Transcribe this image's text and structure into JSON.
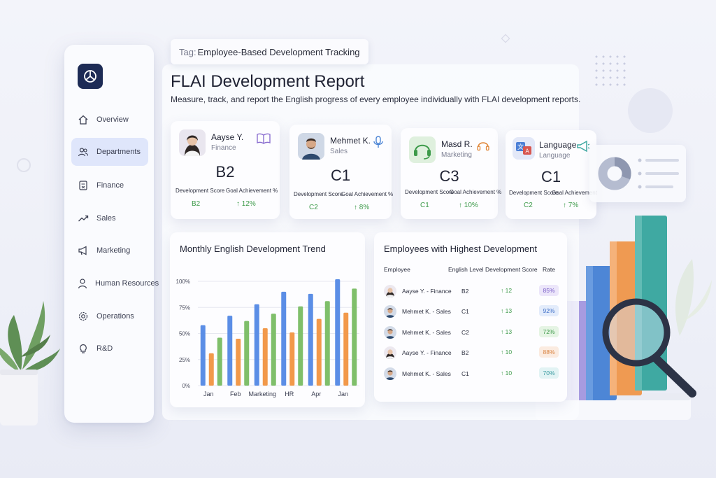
{
  "tag": {
    "prefix": "Tag:",
    "text": "Employee-Based Development Tracking"
  },
  "header": {
    "title": "FLAI Development Report",
    "subtitle": "Measure, track, and report the English progress of every employee individually with FLAI development reports."
  },
  "sidebar": {
    "items": [
      {
        "label": "Overview",
        "icon": "home-icon"
      },
      {
        "label": "Departments",
        "icon": "users-icon",
        "active": true
      },
      {
        "label": "Finance",
        "icon": "calculator-icon"
      },
      {
        "label": "Sales",
        "icon": "trend-up-icon"
      },
      {
        "label": "Marketing",
        "icon": "megaphone-icon"
      },
      {
        "label": "Human Resources",
        "icon": "person-icon"
      },
      {
        "label": "Operations",
        "icon": "gear-icon"
      },
      {
        "label": "R&D",
        "icon": "lightbulb-icon"
      }
    ]
  },
  "cards": [
    {
      "name": "Aayse Y.",
      "department": "Finance",
      "level": "B2",
      "label_score": "Development Score",
      "label_goal": "Goal Achievement %",
      "score": "B2",
      "goal": "↑ 12%",
      "icon": "book-icon"
    },
    {
      "name": "Mehmet K.",
      "department": "Sales",
      "level": "C1",
      "label_score": "Development Score",
      "label_goal": "Goal Achievement %",
      "score": "C2",
      "goal": "↑ 8%",
      "icon": "microphone-icon"
    },
    {
      "name": "Masd R.",
      "department": "Marketing",
      "level": "C3",
      "label_score": "Development Score",
      "label_goal": "Goal Achievement %",
      "score": "C1",
      "goal": "↑ 10%",
      "icon": "headset-icon"
    },
    {
      "name": "Language",
      "department": "Language",
      "level": "C1",
      "label_score": "Development Score",
      "label_goal": "Goal Achievement",
      "score": "C2",
      "goal": "↑ 7%",
      "icon": "megaphone-icon"
    }
  ],
  "trend_panel": {
    "title": "Monthly English Development Trend"
  },
  "chart_data": {
    "type": "bar",
    "title": "Monthly English Development Trend",
    "categories": [
      "Jan",
      "Feb",
      "Marketing",
      "HR",
      "Apr",
      "Jan"
    ],
    "yticks": [
      "0%",
      "25%",
      "50%",
      "75%",
      "100%"
    ],
    "ylim": [
      0,
      100
    ],
    "grid": true,
    "series": [
      {
        "values": [
          58,
          67,
          78,
          90,
          88,
          102
        ],
        "color": "#5b8ee6"
      },
      {
        "values": [
          31,
          45,
          55,
          51,
          64,
          70
        ],
        "color": "#f2994a"
      },
      {
        "values": [
          46,
          62,
          69,
          76,
          81,
          93
        ],
        "color": "#7fbf6a"
      }
    ]
  },
  "table": {
    "title": "Employees with Highest Development",
    "headers": [
      "Employee",
      "English Level",
      "Development Score",
      "Rate"
    ],
    "rows": [
      {
        "employee": "Aayse Y. - Finance",
        "level": "B2",
        "score": "↑ 12",
        "rate": "85%",
        "rate_bg": "#ece6fa",
        "rate_fg": "#7a5fc8",
        "gender": "f"
      },
      {
        "employee": "Mehmet K. - Sales",
        "level": "C1",
        "score": "↑ 13",
        "rate": "92%",
        "rate_bg": "#e3ecfb",
        "rate_fg": "#3f6fc8",
        "gender": "m"
      },
      {
        "employee": "Mehmet K. - Sales",
        "level": "C2",
        "score": "↑ 13",
        "rate": "72%",
        "rate_bg": "#e5f4e4",
        "rate_fg": "#3d9a4a",
        "gender": "m"
      },
      {
        "employee": "Aayse Y. - Finance",
        "level": "B2",
        "score": "↑ 10",
        "rate": "88%",
        "rate_bg": "#fbebe0",
        "rate_fg": "#d9823f",
        "gender": "f"
      },
      {
        "employee": "Mehmet K. - Sales",
        "level": "C1",
        "score": "↑ 10",
        "rate": "70%",
        "rate_bg": "#e2f3f4",
        "rate_fg": "#3a9aa0",
        "gender": "m"
      }
    ]
  },
  "colors": {
    "accent": "#1d2b55",
    "positive": "#3d9a4a",
    "active_nav": "#dfe6fb"
  }
}
